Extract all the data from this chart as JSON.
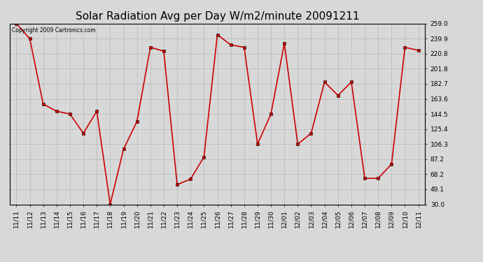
{
  "title": "Solar Radiation Avg per Day W/m2/minute 20091211",
  "copyright_text": "Copyright 2009 Cartronics.com",
  "dates": [
    "11/11",
    "11/12",
    "11/13",
    "11/14",
    "11/15",
    "11/16",
    "11/17",
    "11/18",
    "11/19",
    "11/20",
    "11/21",
    "11/22",
    "11/23",
    "11/24",
    "11/25",
    "11/26",
    "11/27",
    "11/28",
    "11/29",
    "11/30",
    "12/01",
    "12/02",
    "12/03",
    "12/04",
    "12/05",
    "12/06",
    "12/07",
    "12/08",
    "12/09",
    "12/10",
    "12/11"
  ],
  "values": [
    259.0,
    239.9,
    157.0,
    148.0,
    144.5,
    120.0,
    148.0,
    30.0,
    100.0,
    135.0,
    229.0,
    224.0,
    55.0,
    62.0,
    90.0,
    245.0,
    232.0,
    229.0,
    106.3,
    144.5,
    234.0,
    106.3,
    120.0,
    185.0,
    168.0,
    185.0,
    63.0,
    63.0,
    81.0,
    229.0,
    225.0
  ],
  "y_ticks": [
    30.0,
    49.1,
    68.2,
    87.2,
    106.3,
    125.4,
    144.5,
    163.6,
    182.7,
    201.8,
    220.8,
    239.9,
    259.0
  ],
  "y_min": 30.0,
  "y_max": 259.0,
  "line_color": "#cc0000",
  "marker": "s",
  "marker_size": 2.5,
  "bg_color": "#d8d8d8",
  "grid_color": "#aaaaaa",
  "title_fontsize": 11,
  "tick_fontsize": 6.5,
  "copyright_fontsize": 5.5
}
